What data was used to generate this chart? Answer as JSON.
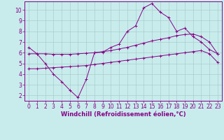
{
  "xlabel": "Windchill (Refroidissement éolien,°C)",
  "ylabel": "",
  "background_color": "#c8ecec",
  "line_color": "#880088",
  "grid_color": "#aacccc",
  "xlim": [
    -0.5,
    23.5
  ],
  "ylim": [
    1.5,
    10.8
  ],
  "xticks": [
    0,
    1,
    2,
    3,
    4,
    5,
    6,
    7,
    8,
    9,
    10,
    11,
    12,
    13,
    14,
    15,
    16,
    17,
    18,
    19,
    20,
    21,
    22,
    23
  ],
  "yticks": [
    2,
    3,
    4,
    5,
    6,
    7,
    8,
    9,
    10
  ],
  "line1_x": [
    0,
    1,
    2,
    3,
    4,
    5,
    6,
    7,
    8,
    9,
    10,
    11,
    12,
    13,
    14,
    15,
    16,
    17,
    18,
    19,
    20,
    21,
    22,
    23
  ],
  "line1_y": [
    6.5,
    5.9,
    5.0,
    4.0,
    3.3,
    2.5,
    1.8,
    3.5,
    6.0,
    6.05,
    6.5,
    6.8,
    8.0,
    8.5,
    10.2,
    10.6,
    9.8,
    9.3,
    8.0,
    8.3,
    7.5,
    7.0,
    6.3,
    5.9
  ],
  "line2_x": [
    0,
    1,
    2,
    3,
    4,
    5,
    6,
    7,
    8,
    9,
    10,
    11,
    12,
    13,
    14,
    15,
    16,
    17,
    18,
    19,
    20,
    21,
    22,
    23
  ],
  "line2_y": [
    5.9,
    5.9,
    5.9,
    5.85,
    5.85,
    5.85,
    5.9,
    5.95,
    6.0,
    6.1,
    6.2,
    6.35,
    6.5,
    6.7,
    6.9,
    7.1,
    7.25,
    7.4,
    7.6,
    7.7,
    7.75,
    7.5,
    7.0,
    5.9
  ],
  "line3_x": [
    0,
    1,
    2,
    3,
    4,
    5,
    6,
    7,
    8,
    9,
    10,
    11,
    12,
    13,
    14,
    15,
    16,
    17,
    18,
    19,
    20,
    21,
    22,
    23
  ],
  "line3_y": [
    4.5,
    4.5,
    4.55,
    4.6,
    4.65,
    4.7,
    4.75,
    4.8,
    4.9,
    5.0,
    5.1,
    5.2,
    5.3,
    5.4,
    5.5,
    5.6,
    5.7,
    5.8,
    5.9,
    6.0,
    6.1,
    6.2,
    5.9,
    5.1
  ],
  "tick_fontsize": 5.5,
  "label_fontsize": 6,
  "marker": "+"
}
